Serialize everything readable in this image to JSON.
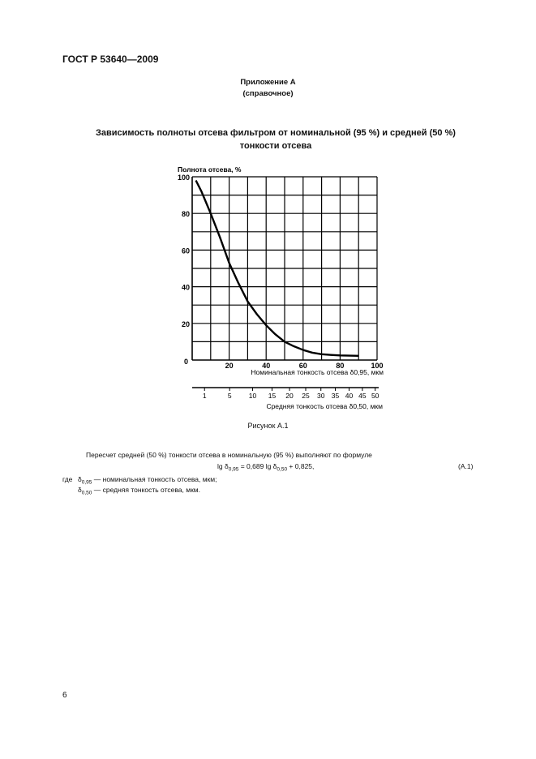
{
  "header": {
    "doc_id": "ГОСТ Р 53640—2009"
  },
  "appendix": {
    "title": "Приложение А",
    "note": "(справочное)"
  },
  "figure_title": {
    "line1": "Зависимость полноты отсева фильтром от номинальной (95 %) и средней (50 %)",
    "line2": "тонкости отсева"
  },
  "chart_data": {
    "type": "line",
    "ylabel": "Полнота отсева, %",
    "xlabel": "Номинальная тонкость отсева δ0,95, мкм",
    "x2label": "Средняя тонкость отсева δ0,50, мкм",
    "xlim": [
      0,
      100
    ],
    "ylim": [
      0,
      100
    ],
    "grid": true,
    "x_ticks": [
      "0",
      "20",
      "40",
      "60",
      "80",
      "100"
    ],
    "y_ticks": [
      "20",
      "40",
      "60",
      "80",
      "100"
    ],
    "x2_ticks": [
      1,
      5,
      10,
      15,
      20,
      25,
      30,
      35,
      40,
      45,
      50
    ],
    "series": [
      {
        "x": [
          2,
          5,
          10,
          15,
          20,
          25,
          30,
          35,
          40,
          45,
          50,
          55,
          60,
          65,
          70,
          75,
          80,
          85,
          90
        ],
        "y": [
          98,
          92,
          80,
          67,
          53,
          42,
          32,
          25,
          19,
          14,
          10,
          7.5,
          5.5,
          4,
          3.2,
          2.8,
          2.5,
          2.4,
          2.3
        ]
      }
    ]
  },
  "caption": "Рисунок А.1",
  "body": {
    "intro": "Пересчет средней (50 %) тонкости отсева в номинальную (95 %) выполняют по формуле",
    "formula": {
      "a": "lg δ",
      "s1": "0,95",
      "b": " = 0,689 lg δ",
      "s2": "0,50",
      "c": " + 0,825,"
    },
    "formula_number": "(А.1)",
    "where": "где",
    "defs": [
      {
        "sym": "δ",
        "sub": "0,95",
        "text": "— номинальная тонкость отсева, мкм;"
      },
      {
        "sym": "δ",
        "sub": "0,50",
        "text": "— средняя тонкость отсева, мкм."
      }
    ]
  },
  "page_number": "6"
}
